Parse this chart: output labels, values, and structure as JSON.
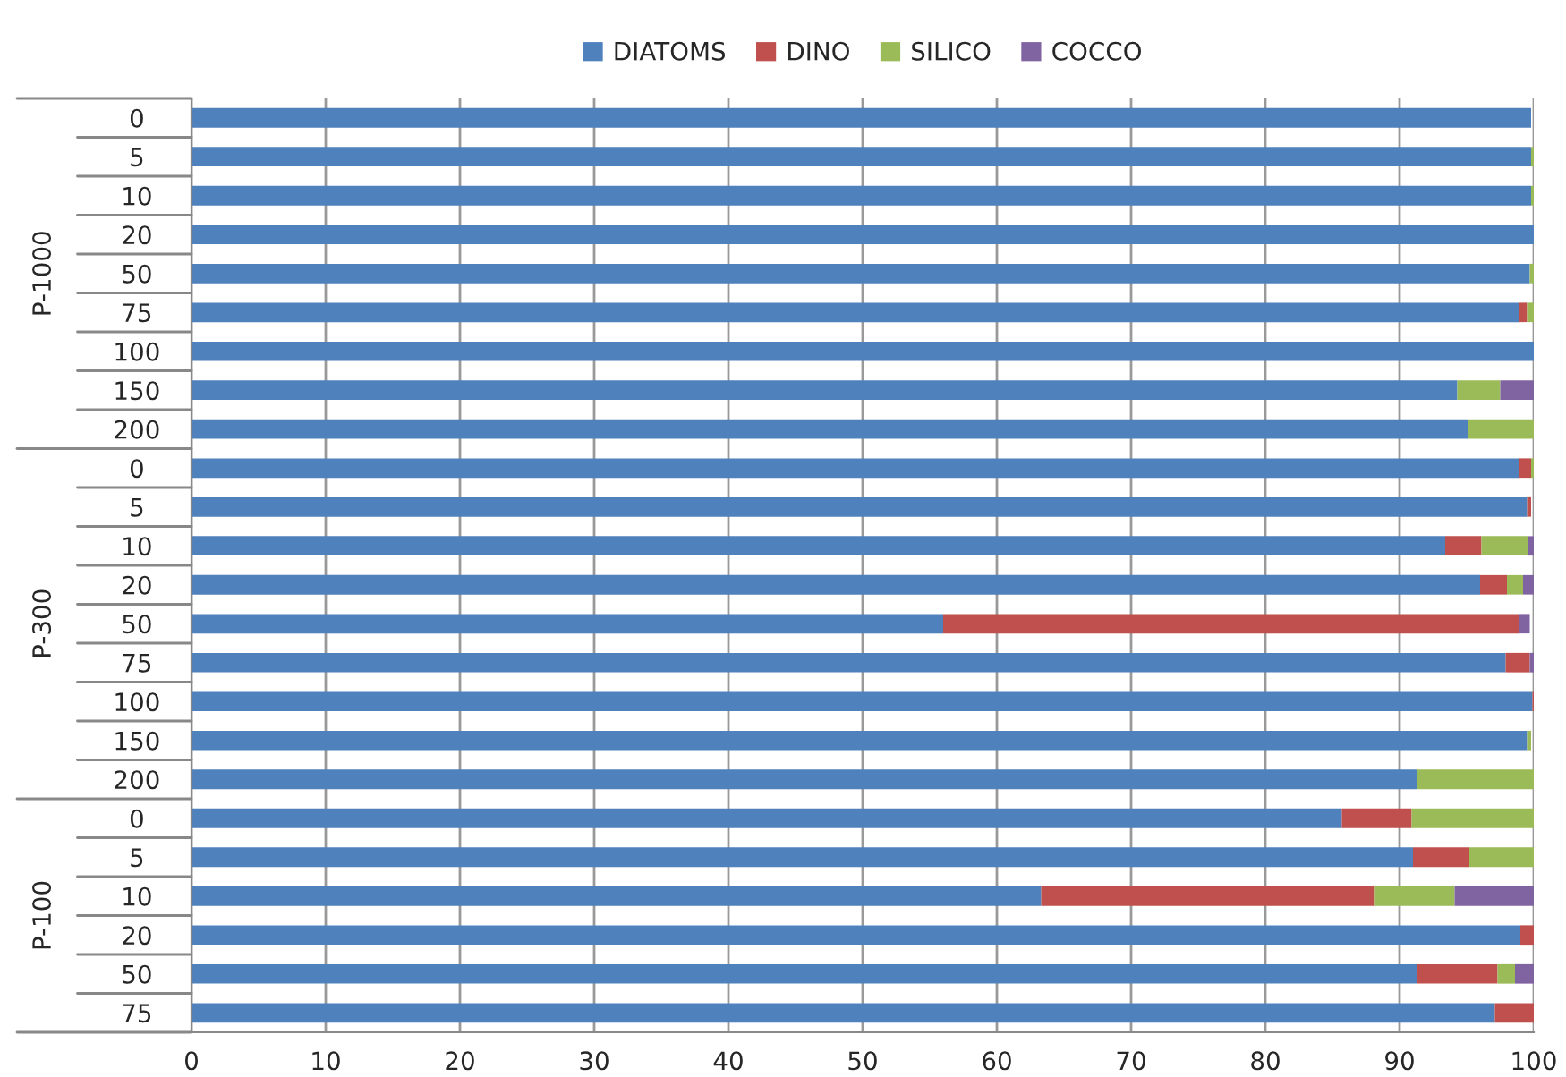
{
  "chart_data": {
    "type": "bar",
    "orientation": "horizontal",
    "stacked": true,
    "categories": [
      "0",
      "5",
      "10",
      "20",
      "50",
      "75",
      "100",
      "150",
      "200",
      "0",
      "5",
      "10",
      "20",
      "50",
      "75",
      "100",
      "150",
      "200",
      "0",
      "5",
      "10",
      "20",
      "50",
      "75"
    ],
    "series": [
      {
        "name": "DIATOMS",
        "color": "#4f81bd",
        "values": [
          99.8,
          99.8,
          99.8,
          100,
          99.7,
          98.9,
          100,
          94.3,
          95.1,
          98.9,
          99.5,
          93.4,
          96.0,
          56.0,
          97.9,
          99.9,
          99.5,
          91.3,
          85.7,
          91.0,
          63.3,
          99.0,
          91.3,
          97.1
        ]
      },
      {
        "name": "DINO",
        "color": "#c0504d",
        "values": [
          0,
          0,
          0,
          0,
          0,
          0.6,
          0,
          0,
          0,
          0.9,
          0.3,
          2.7,
          2.0,
          42.9,
          1.8,
          0.1,
          0,
          0,
          5.2,
          4.2,
          24.8,
          1.0,
          6.0,
          2.9
        ]
      },
      {
        "name": "SILICO",
        "color": "#9bbb59",
        "values": [
          0,
          0.2,
          0.2,
          0,
          0.3,
          0.5,
          0,
          3.2,
          4.9,
          0.2,
          0,
          3.5,
          1.2,
          0,
          0,
          0,
          0.3,
          8.7,
          9.1,
          4.8,
          6.0,
          0,
          1.3,
          0
        ]
      },
      {
        "name": "COCCO",
        "color": "#8064a2",
        "values": [
          null,
          0,
          0,
          0,
          0,
          0,
          0,
          2.5,
          0,
          0,
          null,
          0.4,
          0.8,
          0.8,
          0.3,
          0,
          null,
          0,
          0,
          0,
          5.9,
          0,
          1.4,
          0
        ]
      }
    ],
    "annotations": [
      "P-1000",
      "P-300",
      "P-100"
    ],
    "xlim": [
      0,
      100
    ],
    "xticks": [
      0,
      10,
      20,
      30,
      40,
      50,
      60,
      70,
      80,
      90,
      100
    ],
    "grid": "x",
    "legend": "top"
  }
}
